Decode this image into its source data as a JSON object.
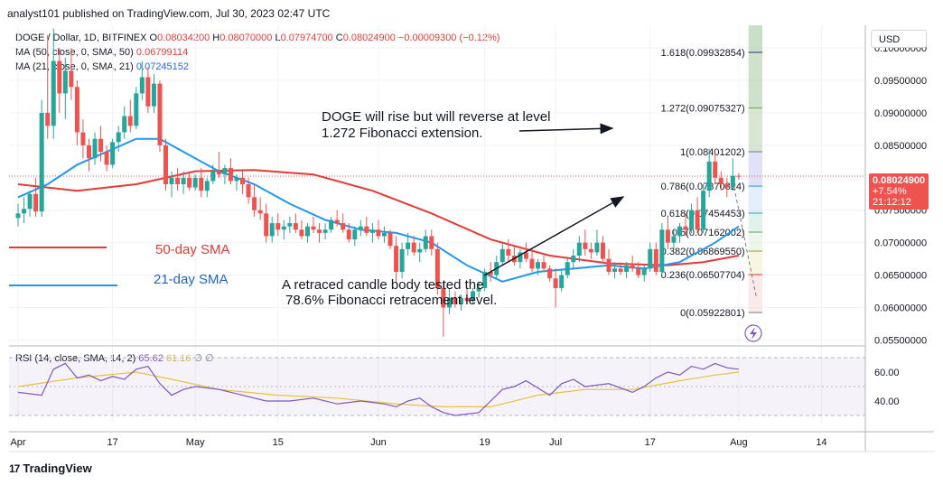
{
  "header": {
    "publisher": "analyst101 published on TradingView.com, Jul 30, 2023 02:47 UTC"
  },
  "symbol": {
    "name": "DOGE / Dollar, 1D, BITFINEX",
    "open_label": "O",
    "open": "0.08034200",
    "high_label": "H",
    "high": "0.08070000",
    "low_label": "L",
    "low": "0.07974700",
    "close_label": "C",
    "close": "0.08024900",
    "change": "−0.00009300 (−0.12%)"
  },
  "indicators": {
    "ma50": {
      "label": "MA (50, close, 0, SMA, 50)",
      "value": "0.06799114"
    },
    "ma21": {
      "label": "MA (21, close, 0, SMA, 21)",
      "value": "0.07245152"
    },
    "rsi": {
      "label": "RSI (14, close, SMA, 14, 2)",
      "value1": "65.62",
      "value2": "61.16",
      "symbols": "∅ ∅"
    }
  },
  "currency_button": "USD",
  "price_badge": {
    "price": "0.08024900",
    "change": "+7.54%",
    "countdown": "21:12:12"
  },
  "footer": {
    "logo": "TradingView"
  },
  "colors": {
    "up": "#26a69a",
    "down": "#ef5350",
    "ma50": "#e53935",
    "ma21": "#2196f3",
    "rsi": "#7e57c2",
    "rsi_ma": "#e8c33a"
  },
  "chart_data": {
    "type": "candlestick",
    "price_axis": {
      "range": [
        0.0545,
        0.1035
      ],
      "ticks": [
        0.1,
        0.095,
        0.09,
        0.085,
        0.08,
        0.075,
        0.07,
        0.065,
        0.06,
        0.055
      ],
      "tick_labels": [
        "0.10000000",
        "0.09500000",
        "0.09000000",
        "0.08500000",
        "0.08000000",
        "0.07500000",
        "0.07000000",
        "0.06500000",
        "0.06000000",
        "0.05500000"
      ]
    },
    "rsi_axis": {
      "range": [
        30,
        70
      ],
      "ticks": [
        60,
        40
      ],
      "tick_labels": [
        "60.00",
        "40.00"
      ],
      "band": [
        30,
        70
      ]
    },
    "time_axis": {
      "labels": [
        "Apr",
        "17",
        "May",
        "15",
        "Jun",
        "19",
        "Jul",
        "17",
        "Aug",
        "14"
      ],
      "label_day_index": [
        0,
        16,
        30,
        44,
        61,
        79,
        91,
        107,
        122,
        136
      ]
    },
    "fibonacci": {
      "levels": [
        {
          "ratio": "1.618",
          "price": 0.09932854,
          "label": "1.618(0.09932854)"
        },
        {
          "ratio": "1.272",
          "price": 0.09075327,
          "label": "1.272(0.09075327)"
        },
        {
          "ratio": "1",
          "price": 0.08401202,
          "label": "1(0.08401202)"
        },
        {
          "ratio": "0.786",
          "price": 0.07870824,
          "label": "0.786(0.07870824)"
        },
        {
          "ratio": "0.618",
          "price": 0.07454453,
          "label": "0.618(0.07454453)"
        },
        {
          "ratio": "0.5",
          "price": 0.07162002,
          "label": "0.5(0.07162002)"
        },
        {
          "ratio": "0.382",
          "price": 0.0686955,
          "label": "0.382(0.06869550)"
        },
        {
          "ratio": "0.236",
          "price": 0.06507704,
          "label": "0.236(0.06507704)"
        },
        {
          "ratio": "0",
          "price": 0.05922801,
          "label": "0(0.05922801)"
        }
      ],
      "day_range": [
        116,
        126
      ]
    },
    "annotations": {
      "top_text": [
        "DOGE will rise but will reverse at level",
        "1.272 Fibonacci extension."
      ],
      "bottom_text": [
        "A retraced candle body tested the",
        "78.6% Fibonacci retracement level."
      ],
      "legend_ma50": "50-day SMA",
      "legend_ma21": "21-day SMA"
    },
    "candles": [
      [
        0.0738,
        0.076,
        0.0725,
        0.0745
      ],
      [
        0.0745,
        0.077,
        0.073,
        0.0752
      ],
      [
        0.0752,
        0.078,
        0.074,
        0.0775
      ],
      [
        0.0775,
        0.08,
        0.074,
        0.0748
      ],
      [
        0.0748,
        0.092,
        0.074,
        0.09
      ],
      [
        0.09,
        0.102,
        0.086,
        0.088
      ],
      [
        0.088,
        0.103,
        0.086,
        0.098
      ],
      [
        0.098,
        0.1,
        0.09,
        0.093
      ],
      [
        0.093,
        0.0985,
        0.089,
        0.0965
      ],
      [
        0.0965,
        0.1,
        0.092,
        0.094
      ],
      [
        0.094,
        0.095,
        0.085,
        0.087
      ],
      [
        0.087,
        0.089,
        0.083,
        0.085
      ],
      [
        0.085,
        0.086,
        0.081,
        0.083
      ],
      [
        0.083,
        0.087,
        0.082,
        0.086
      ],
      [
        0.086,
        0.088,
        0.0825,
        0.084
      ],
      [
        0.084,
        0.085,
        0.081,
        0.082
      ],
      [
        0.082,
        0.086,
        0.0815,
        0.0855
      ],
      [
        0.0855,
        0.088,
        0.084,
        0.087
      ],
      [
        0.087,
        0.091,
        0.086,
        0.0895
      ],
      [
        0.0895,
        0.092,
        0.087,
        0.088
      ],
      [
        0.088,
        0.094,
        0.0875,
        0.093
      ],
      [
        0.093,
        0.098,
        0.092,
        0.0955
      ],
      [
        0.0955,
        0.097,
        0.09,
        0.091
      ],
      [
        0.091,
        0.096,
        0.09,
        0.0945
      ],
      [
        0.0945,
        0.095,
        0.084,
        0.085
      ],
      [
        0.085,
        0.086,
        0.078,
        0.079
      ],
      [
        0.079,
        0.081,
        0.077,
        0.08
      ],
      [
        0.08,
        0.0815,
        0.078,
        0.079
      ],
      [
        0.079,
        0.081,
        0.0775,
        0.08
      ],
      [
        0.08,
        0.081,
        0.078,
        0.0785
      ],
      [
        0.0785,
        0.0805,
        0.078,
        0.08
      ],
      [
        0.08,
        0.0815,
        0.077,
        0.078
      ],
      [
        0.078,
        0.08,
        0.077,
        0.0795
      ],
      [
        0.0795,
        0.082,
        0.079,
        0.081
      ],
      [
        0.081,
        0.084,
        0.08,
        0.0805
      ],
      [
        0.0805,
        0.082,
        0.079,
        0.0815
      ],
      [
        0.0815,
        0.083,
        0.079,
        0.0795
      ],
      [
        0.0795,
        0.0805,
        0.078,
        0.08
      ],
      [
        0.08,
        0.081,
        0.0775,
        0.079
      ],
      [
        0.079,
        0.08,
        0.076,
        0.077
      ],
      [
        0.077,
        0.079,
        0.074,
        0.075
      ],
      [
        0.075,
        0.077,
        0.0735,
        0.0745
      ],
      [
        0.0745,
        0.076,
        0.07,
        0.071
      ],
      [
        0.071,
        0.074,
        0.07,
        0.073
      ],
      [
        0.073,
        0.0745,
        0.071,
        0.072
      ],
      [
        0.072,
        0.0735,
        0.0705,
        0.0725
      ],
      [
        0.0725,
        0.074,
        0.0715,
        0.073
      ],
      [
        0.073,
        0.0745,
        0.0715,
        0.072
      ],
      [
        0.072,
        0.0735,
        0.0705,
        0.071
      ],
      [
        0.071,
        0.073,
        0.07,
        0.0725
      ],
      [
        0.0725,
        0.074,
        0.0715,
        0.072
      ],
      [
        0.072,
        0.073,
        0.07,
        0.0715
      ],
      [
        0.0715,
        0.073,
        0.0705,
        0.072
      ],
      [
        0.072,
        0.074,
        0.0715,
        0.0735
      ],
      [
        0.0735,
        0.075,
        0.0725,
        0.073
      ],
      [
        0.073,
        0.0745,
        0.0715,
        0.072
      ],
      [
        0.072,
        0.073,
        0.07,
        0.0705
      ],
      [
        0.0705,
        0.0725,
        0.0695,
        0.072
      ],
      [
        0.072,
        0.0735,
        0.071,
        0.0725
      ],
      [
        0.0725,
        0.074,
        0.071,
        0.0715
      ],
      [
        0.0715,
        0.073,
        0.07,
        0.072
      ],
      [
        0.072,
        0.0735,
        0.0705,
        0.071
      ],
      [
        0.071,
        0.0725,
        0.07,
        0.0715
      ],
      [
        0.0715,
        0.072,
        0.069,
        0.0695
      ],
      [
        0.0695,
        0.071,
        0.064,
        0.0655
      ],
      [
        0.0655,
        0.07,
        0.0645,
        0.069
      ],
      [
        0.069,
        0.0715,
        0.068,
        0.07
      ],
      [
        0.07,
        0.071,
        0.068,
        0.0685
      ],
      [
        0.0685,
        0.07,
        0.067,
        0.069
      ],
      [
        0.069,
        0.072,
        0.0685,
        0.071
      ],
      [
        0.071,
        0.072,
        0.068,
        0.069
      ],
      [
        0.069,
        0.07,
        0.062,
        0.063
      ],
      [
        0.063,
        0.064,
        0.0555,
        0.06
      ],
      [
        0.06,
        0.063,
        0.059,
        0.0615
      ],
      [
        0.0615,
        0.0625,
        0.06,
        0.0605
      ],
      [
        0.0605,
        0.062,
        0.0595,
        0.0615
      ],
      [
        0.0615,
        0.063,
        0.0605,
        0.061
      ],
      [
        0.061,
        0.063,
        0.0605,
        0.0625
      ],
      [
        0.0625,
        0.064,
        0.0615,
        0.063
      ],
      [
        0.063,
        0.066,
        0.0625,
        0.0655
      ],
      [
        0.0655,
        0.067,
        0.064,
        0.065
      ],
      [
        0.065,
        0.068,
        0.0645,
        0.067
      ],
      [
        0.067,
        0.07,
        0.0665,
        0.069
      ],
      [
        0.069,
        0.0705,
        0.067,
        0.068
      ],
      [
        0.068,
        0.0695,
        0.0665,
        0.067
      ],
      [
        0.067,
        0.069,
        0.066,
        0.0685
      ],
      [
        0.0685,
        0.07,
        0.067,
        0.0675
      ],
      [
        0.0675,
        0.069,
        0.0655,
        0.066
      ],
      [
        0.066,
        0.0675,
        0.065,
        0.067
      ],
      [
        0.067,
        0.068,
        0.0655,
        0.066
      ],
      [
        0.066,
        0.0665,
        0.064,
        0.0645
      ],
      [
        0.0645,
        0.066,
        0.06,
        0.063
      ],
      [
        0.063,
        0.066,
        0.0625,
        0.065
      ],
      [
        0.065,
        0.0675,
        0.0645,
        0.067
      ],
      [
        0.067,
        0.069,
        0.066,
        0.068
      ],
      [
        0.068,
        0.071,
        0.067,
        0.07
      ],
      [
        0.07,
        0.072,
        0.068,
        0.069
      ],
      [
        0.069,
        0.07,
        0.0675,
        0.0685
      ],
      [
        0.0685,
        0.072,
        0.068,
        0.07
      ],
      [
        0.07,
        0.071,
        0.067,
        0.0675
      ],
      [
        0.0675,
        0.069,
        0.065,
        0.0655
      ],
      [
        0.0655,
        0.067,
        0.0645,
        0.066
      ],
      [
        0.066,
        0.067,
        0.065,
        0.0655
      ],
      [
        0.0655,
        0.067,
        0.0645,
        0.0665
      ],
      [
        0.0665,
        0.068,
        0.0655,
        0.066
      ],
      [
        0.066,
        0.067,
        0.0645,
        0.065
      ],
      [
        0.065,
        0.0665,
        0.064,
        0.066
      ],
      [
        0.066,
        0.07,
        0.0655,
        0.069
      ],
      [
        0.069,
        0.07,
        0.065,
        0.0655
      ],
      [
        0.0655,
        0.073,
        0.065,
        0.072
      ],
      [
        0.072,
        0.074,
        0.069,
        0.07
      ],
      [
        0.07,
        0.072,
        0.069,
        0.071
      ],
      [
        0.071,
        0.073,
        0.07,
        0.0725
      ],
      [
        0.0725,
        0.0745,
        0.071,
        0.072
      ],
      [
        0.072,
        0.076,
        0.0715,
        0.075
      ],
      [
        0.075,
        0.077,
        0.0715,
        0.072
      ],
      [
        0.072,
        0.079,
        0.0715,
        0.078
      ],
      [
        0.078,
        0.0845,
        0.077,
        0.0825
      ],
      [
        0.0825,
        0.084,
        0.079,
        0.08
      ],
      [
        0.08,
        0.081,
        0.078,
        0.079
      ],
      [
        0.079,
        0.08,
        0.077,
        0.0785
      ],
      [
        0.0785,
        0.083,
        0.078,
        0.0803
      ],
      [
        0.0803,
        0.0807,
        0.0797,
        0.0802
      ]
    ],
    "ma50_points": [
      [
        0,
        0.079
      ],
      [
        10,
        0.078
      ],
      [
        20,
        0.079
      ],
      [
        30,
        0.081
      ],
      [
        40,
        0.0812
      ],
      [
        50,
        0.0805
      ],
      [
        60,
        0.078
      ],
      [
        70,
        0.0745
      ],
      [
        80,
        0.0705
      ],
      [
        90,
        0.068
      ],
      [
        100,
        0.0668
      ],
      [
        110,
        0.0665
      ],
      [
        116,
        0.067
      ],
      [
        122,
        0.068
      ]
    ],
    "ma21_points": [
      [
        0,
        0.077
      ],
      [
        5,
        0.079
      ],
      [
        10,
        0.082
      ],
      [
        15,
        0.084
      ],
      [
        20,
        0.086
      ],
      [
        24,
        0.086
      ],
      [
        28,
        0.084
      ],
      [
        34,
        0.081
      ],
      [
        40,
        0.079
      ],
      [
        46,
        0.076
      ],
      [
        52,
        0.0735
      ],
      [
        58,
        0.072
      ],
      [
        64,
        0.0715
      ],
      [
        70,
        0.07
      ],
      [
        76,
        0.0665
      ],
      [
        82,
        0.064
      ],
      [
        88,
        0.0655
      ],
      [
        94,
        0.066
      ],
      [
        100,
        0.0665
      ],
      [
        106,
        0.066
      ],
      [
        112,
        0.067
      ],
      [
        118,
        0.07
      ],
      [
        122,
        0.0725
      ]
    ],
    "rsi_points": [
      [
        0,
        46
      ],
      [
        4,
        44
      ],
      [
        6,
        62
      ],
      [
        8,
        66
      ],
      [
        10,
        56
      ],
      [
        12,
        58
      ],
      [
        14,
        54
      ],
      [
        16,
        57
      ],
      [
        18,
        55
      ],
      [
        20,
        62
      ],
      [
        22,
        64
      ],
      [
        24,
        52
      ],
      [
        26,
        44
      ],
      [
        28,
        48
      ],
      [
        30,
        50
      ],
      [
        34,
        48
      ],
      [
        38,
        44
      ],
      [
        42,
        40
      ],
      [
        46,
        40
      ],
      [
        50,
        42
      ],
      [
        54,
        38
      ],
      [
        58,
        40
      ],
      [
        62,
        38
      ],
      [
        64,
        36
      ],
      [
        66,
        40
      ],
      [
        68,
        42
      ],
      [
        70,
        36
      ],
      [
        72,
        32
      ],
      [
        74,
        30
      ],
      [
        76,
        31
      ],
      [
        78,
        32
      ],
      [
        80,
        40
      ],
      [
        82,
        48
      ],
      [
        84,
        50
      ],
      [
        86,
        54
      ],
      [
        88,
        49
      ],
      [
        90,
        44
      ],
      [
        92,
        52
      ],
      [
        94,
        55
      ],
      [
        96,
        50
      ],
      [
        100,
        52
      ],
      [
        104,
        46
      ],
      [
        106,
        50
      ],
      [
        108,
        56
      ],
      [
        110,
        60
      ],
      [
        112,
        58
      ],
      [
        114,
        64
      ],
      [
        116,
        62
      ],
      [
        118,
        66
      ],
      [
        120,
        63
      ],
      [
        122,
        62
      ]
    ],
    "rsi_ma_points": [
      [
        0,
        50
      ],
      [
        10,
        56
      ],
      [
        20,
        60
      ],
      [
        26,
        55
      ],
      [
        34,
        48
      ],
      [
        44,
        44
      ],
      [
        54,
        42
      ],
      [
        64,
        38
      ],
      [
        72,
        36
      ],
      [
        80,
        36
      ],
      [
        88,
        44
      ],
      [
        96,
        48
      ],
      [
        104,
        48
      ],
      [
        112,
        54
      ],
      [
        118,
        58
      ],
      [
        122,
        60
      ]
    ],
    "projection_dashed": [
      [
        121,
        0.0795
      ],
      [
        125,
        0.0615
      ]
    ]
  }
}
